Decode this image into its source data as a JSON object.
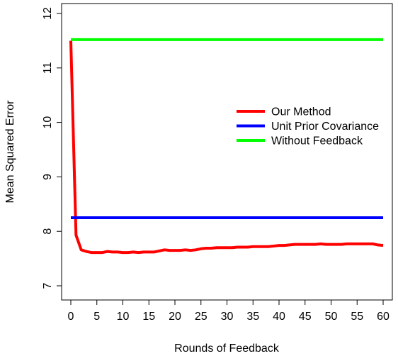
{
  "chart_data": {
    "type": "line",
    "title": "",
    "xlabel": "Rounds of Feedback",
    "ylabel": "Mean Squared Error",
    "xlim": [
      0,
      60
    ],
    "ylim": [
      7,
      12
    ],
    "x_ticks": [
      0,
      5,
      10,
      15,
      20,
      25,
      30,
      35,
      40,
      45,
      50,
      55,
      60
    ],
    "x_tick_labels": [
      "0",
      "5",
      "10",
      "15",
      "20",
      "25",
      "30",
      "35",
      "40",
      "45",
      "50",
      "55",
      "60"
    ],
    "y_ticks": [
      7,
      8,
      9,
      10,
      11,
      12
    ],
    "y_tick_labels": [
      "7",
      "8",
      "9",
      "10",
      "11",
      "12"
    ],
    "grid": false,
    "legend_position": "right-center",
    "series": [
      {
        "name": "Our Method",
        "color": "#ff0000",
        "x": [
          0,
          1,
          2,
          3,
          4,
          5,
          6,
          7,
          8,
          9,
          10,
          11,
          12,
          13,
          14,
          15,
          16,
          17,
          18,
          19,
          20,
          21,
          22,
          23,
          24,
          25,
          26,
          27,
          28,
          29,
          30,
          31,
          32,
          33,
          34,
          35,
          36,
          37,
          38,
          39,
          40,
          41,
          42,
          43,
          44,
          45,
          46,
          47,
          48,
          49,
          50,
          51,
          52,
          53,
          54,
          55,
          56,
          57,
          58,
          59,
          60
        ],
        "y": [
          11.5,
          7.93,
          7.66,
          7.63,
          7.61,
          7.61,
          7.61,
          7.63,
          7.62,
          7.62,
          7.61,
          7.61,
          7.62,
          7.61,
          7.62,
          7.62,
          7.62,
          7.64,
          7.66,
          7.65,
          7.65,
          7.65,
          7.66,
          7.65,
          7.66,
          7.68,
          7.69,
          7.69,
          7.7,
          7.7,
          7.7,
          7.7,
          7.71,
          7.71,
          7.71,
          7.72,
          7.72,
          7.72,
          7.72,
          7.73,
          7.74,
          7.74,
          7.75,
          7.76,
          7.76,
          7.76,
          7.76,
          7.76,
          7.77,
          7.76,
          7.76,
          7.76,
          7.76,
          7.77,
          7.77,
          7.77,
          7.77,
          7.77,
          7.77,
          7.75,
          7.74
        ]
      },
      {
        "name": "Unit Prior Covariance",
        "color": "#0000ff",
        "x": [
          0,
          60
        ],
        "y": [
          8.25,
          8.25
        ]
      },
      {
        "name": "Without Feedback",
        "color": "#00ff00",
        "x": [
          0,
          60
        ],
        "y": [
          11.52,
          11.52
        ]
      }
    ]
  }
}
